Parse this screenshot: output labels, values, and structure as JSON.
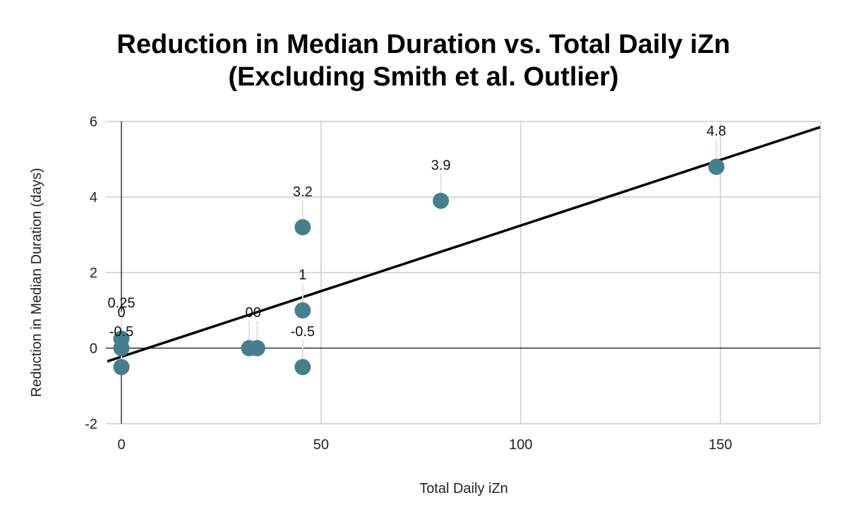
{
  "chart_data": {
    "type": "scatter",
    "title_lines": [
      "Reduction in Median Duration vs. Total Daily iZn",
      "(Excluding Smith et al. Outlier)"
    ],
    "xlabel": "Total Daily iZn",
    "ylabel": "Reduction in Median Duration (days)",
    "xlim": [
      0,
      175
    ],
    "ylim": [
      -2,
      6
    ],
    "xticks": [
      0,
      50,
      100,
      150
    ],
    "yticks": [
      -2,
      0,
      2,
      4,
      6
    ],
    "grid": true,
    "legend": "none",
    "point_color": "#447f8e",
    "trendline": {
      "type": "linear",
      "color": "#000000",
      "y_at_x_min": -0.35,
      "y_at_x_max": 5.85
    },
    "points": [
      {
        "x": 0,
        "y": 0.25,
        "label": "0.25"
      },
      {
        "x": 0,
        "y": 0,
        "label": "0"
      },
      {
        "x": 0,
        "y": -0.5,
        "label": "-0.5"
      },
      {
        "x": 32,
        "y": 0,
        "label": "0"
      },
      {
        "x": 34,
        "y": 0,
        "label": "0"
      },
      {
        "x": 45.4,
        "y": 3.2,
        "label": "3.2"
      },
      {
        "x": 45.4,
        "y": 1,
        "label": "1"
      },
      {
        "x": 45.4,
        "y": -0.5,
        "label": "-0.5"
      },
      {
        "x": 80,
        "y": 3.9,
        "label": "3.9"
      },
      {
        "x": 149,
        "y": 4.8,
        "label": "4.8"
      }
    ]
  }
}
